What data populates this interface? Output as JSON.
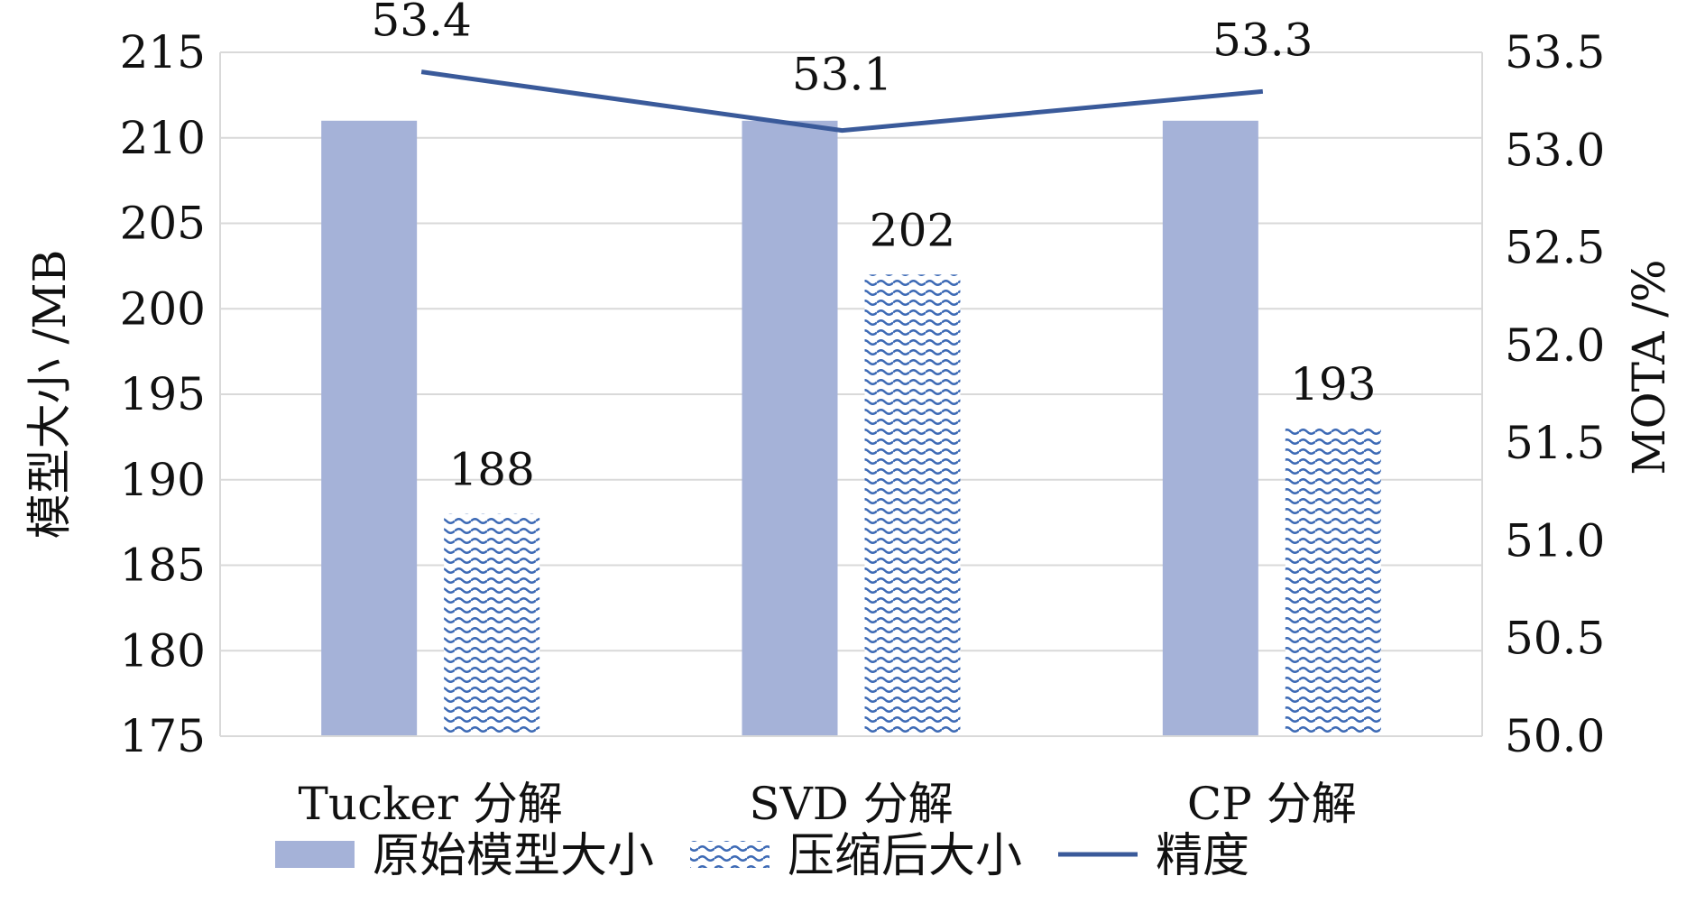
{
  "chart_data": {
    "type": "bar",
    "title": "",
    "categories": [
      "Tucker 分解",
      "SVD 分解",
      "CP 分解"
    ],
    "series": [
      {
        "name": "原始模型大小",
        "kind": "bar",
        "axis": "left",
        "style": "solid",
        "color": "#a5b2d8",
        "values": [
          211,
          211,
          211
        ],
        "show_labels": false
      },
      {
        "name": "压缩后大小",
        "kind": "bar",
        "axis": "left",
        "style": "wave-pattern",
        "color": "#3d6ab5",
        "values": [
          188,
          202,
          193
        ],
        "labels": [
          "188",
          "202",
          "193"
        ],
        "show_labels": true
      },
      {
        "name": "精度",
        "kind": "line",
        "axis": "right",
        "color": "#3a5a9a",
        "values": [
          53.4,
          53.1,
          53.3
        ],
        "labels": [
          "53.4",
          "53.1",
          "53.3"
        ],
        "show_labels": true
      }
    ],
    "y_left": {
      "label": "模型大小 /MB",
      "min": 175,
      "max": 215,
      "ticks": [
        "175",
        "180",
        "185",
        "190",
        "195",
        "200",
        "205",
        "210",
        "215"
      ]
    },
    "y_right": {
      "label": "MOTA /%",
      "min": 50.0,
      "max": 53.5,
      "ticks": [
        "50.0",
        "50.5",
        "51.0",
        "51.5",
        "52.0",
        "52.5",
        "53.0",
        "53.5"
      ]
    },
    "grid": "horizontal",
    "legend_position": "bottom"
  }
}
